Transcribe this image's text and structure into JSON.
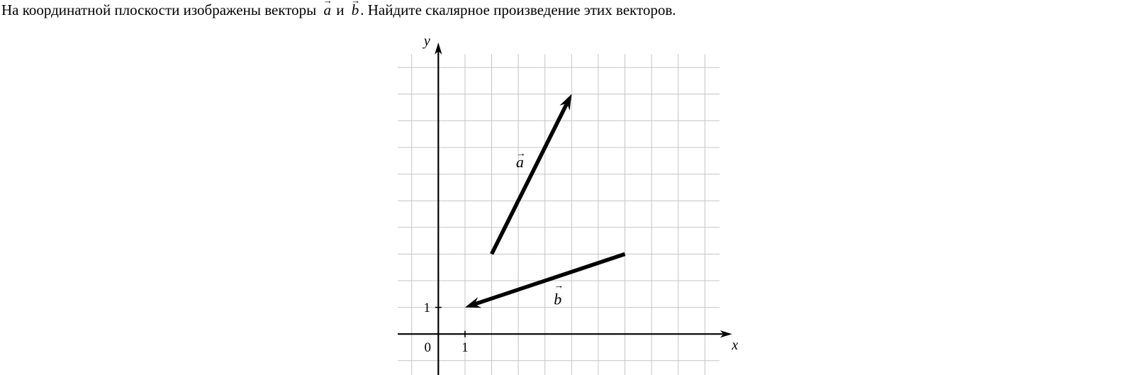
{
  "problem": {
    "text_before": "На координатной плоскости изображены векторы ",
    "vector_a_letter": "a",
    "text_between": " и ",
    "vector_b_letter": "b",
    "text_after": ". Найдите скалярное произведение этих векторов.",
    "arrow_glyph": "→"
  },
  "colors": {
    "background": "#ffffff",
    "text": "#000000",
    "grid": "#c4c4c4",
    "axis": "#000000",
    "vector": "#000000"
  },
  "chart_data": {
    "type": "line",
    "subtype": "vector-plot-on-grid",
    "title": "",
    "xlabel": "x",
    "ylabel": "y",
    "grid_on": true,
    "legend": "none",
    "axes": {
      "x_label": "x",
      "y_label": "y",
      "origin_label": "0",
      "x_line_span": [
        -1.52,
        11.02
      ],
      "y_line_span": [
        -1.55,
        10.94
      ],
      "x_tick": {
        "value": 1,
        "label": "1"
      },
      "y_tick": {
        "value": 1,
        "label": "1"
      }
    },
    "grid": {
      "x_lines": {
        "from": -1,
        "to": 10
      },
      "y_lines": {
        "from": -1,
        "to": 10
      },
      "vertical_span_y": [
        -1.55,
        10.5
      ],
      "horizontal_span_x": [
        -1.52,
        10.55
      ]
    },
    "vectors": [
      {
        "name": "a",
        "label_letter": "a",
        "from": [
          2,
          3
        ],
        "to": [
          5,
          9
        ],
        "components": [
          3,
          6
        ],
        "label_pos": [
          3.06,
          6.45
        ],
        "label_arrow_dy": -8
      },
      {
        "name": "b",
        "label_letter": "b",
        "from": [
          7,
          3
        ],
        "to": [
          1,
          1
        ],
        "components": [
          -6,
          -2
        ],
        "label_pos": [
          4.48,
          1.31
        ],
        "label_arrow_dy": -15
      }
    ]
  }
}
